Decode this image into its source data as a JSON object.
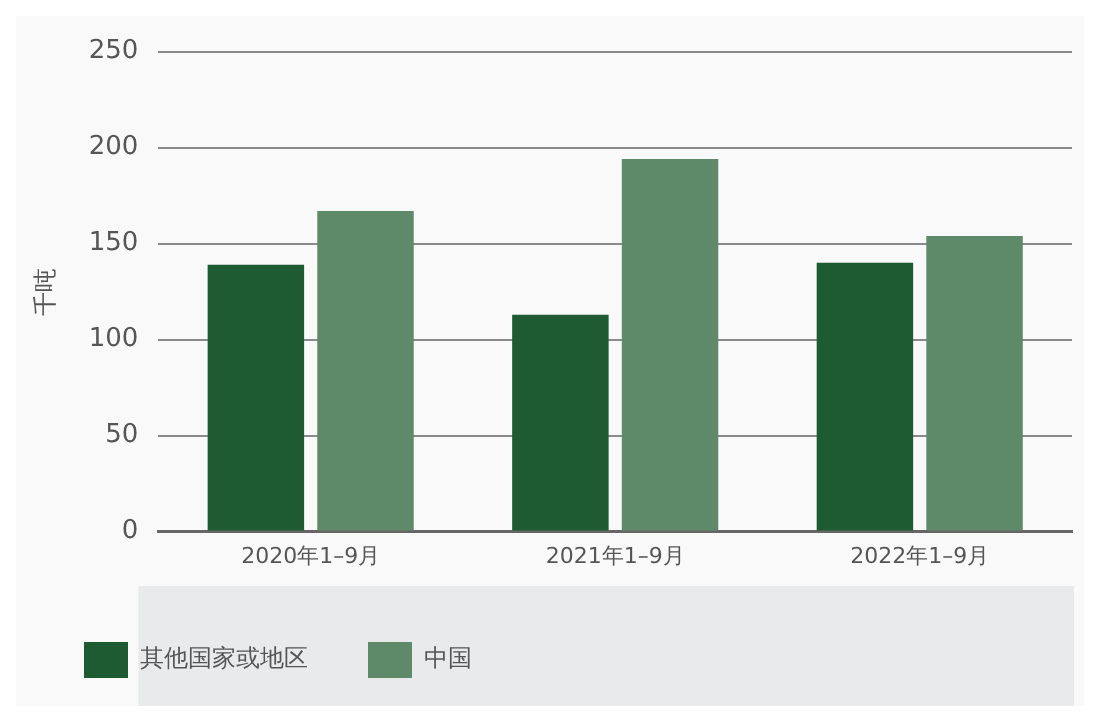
{
  "chart_data": {
    "type": "bar",
    "ylabel": "千吨",
    "categories": [
      "2020年1–9月",
      "2021年1–9月",
      "2022年1–9月"
    ],
    "series": [
      {
        "name": "其他国家或地区",
        "color": "#1e5a32",
        "values": [
          139,
          113,
          140
        ]
      },
      {
        "name": "中国",
        "color": "#5e8a6a",
        "values": [
          167,
          194,
          154
        ]
      }
    ],
    "ylim": [
      0,
      250
    ],
    "yticks": [
      0,
      50,
      100,
      150,
      200,
      250
    ],
    "grid": "y",
    "legend": "bottom"
  }
}
